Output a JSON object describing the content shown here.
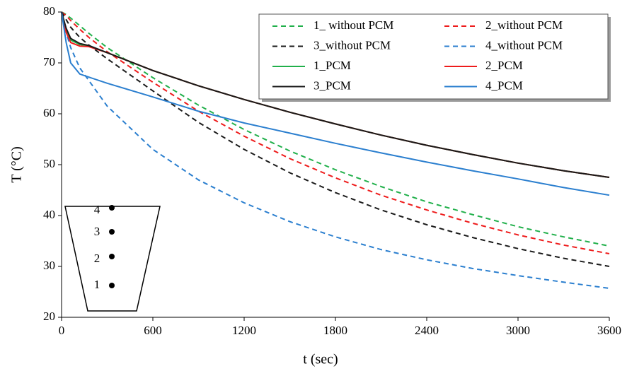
{
  "chart_data": {
    "type": "line",
    "xlabel": "t (sec)",
    "ylabel": "T (°C)",
    "x": [
      0,
      30,
      60,
      120,
      180,
      300,
      600,
      900,
      1200,
      1500,
      1800,
      2100,
      2400,
      2700,
      3000,
      3300,
      3600
    ],
    "series": [
      {
        "name": "1_ without PCM",
        "color": "#21b04b",
        "dash": true,
        "values": [
          80,
          79.5,
          78.8,
          77.3,
          75.8,
          73.0,
          67.1,
          61.7,
          56.9,
          52.7,
          49.0,
          45.7,
          42.7,
          40.2,
          37.8,
          35.8,
          34.0
        ]
      },
      {
        "name": "2_without PCM",
        "color": "#ee1c1c",
        "dash": true,
        "values": [
          80,
          79.3,
          78.3,
          76.6,
          75.0,
          72.2,
          66.2,
          60.5,
          55.6,
          51.2,
          47.4,
          44.0,
          41.1,
          38.5,
          36.2,
          34.2,
          32.5
        ]
      },
      {
        "name": "3_without PCM",
        "color": "#1a1a1a",
        "dash": true,
        "values": [
          80,
          78.5,
          77.0,
          75.0,
          73.5,
          70.8,
          64.5,
          58.3,
          53.0,
          48.4,
          44.5,
          41.1,
          38.2,
          35.7,
          33.5,
          31.6,
          30.0
        ]
      },
      {
        "name": "4_without PCM",
        "color": "#2b7fcf",
        "dash": true,
        "values": [
          80,
          76.0,
          73.0,
          69.0,
          66.5,
          61.5,
          53.0,
          47.0,
          42.5,
          38.8,
          35.8,
          33.3,
          31.3,
          29.6,
          28.2,
          26.9,
          25.7
        ]
      },
      {
        "name": "1_PCM",
        "color": "#21b04b",
        "dash": false,
        "values": [
          80,
          76.5,
          74.5,
          73.6,
          73.3,
          72.0,
          68.5,
          65.5,
          62.8,
          60.3,
          58.0,
          55.8,
          53.8,
          52.0,
          50.3,
          48.8,
          47.5
        ]
      },
      {
        "name": "2_PCM",
        "color": "#ee1c1c",
        "dash": false,
        "values": [
          80,
          76.0,
          74.0,
          73.3,
          73.2,
          72.0,
          68.5,
          65.5,
          62.8,
          60.3,
          58.0,
          55.8,
          53.8,
          52.0,
          50.3,
          48.8,
          47.5
        ]
      },
      {
        "name": "3_PCM",
        "color": "#1a1a1a",
        "dash": false,
        "values": [
          80,
          76.8,
          74.8,
          73.8,
          73.4,
          72.0,
          68.5,
          65.5,
          62.8,
          60.3,
          58.0,
          55.8,
          53.8,
          52.0,
          50.3,
          48.8,
          47.5
        ]
      },
      {
        "name": "4_PCM",
        "color": "#2b7fcf",
        "dash": false,
        "values": [
          80,
          74.0,
          70.0,
          67.8,
          67.2,
          66.0,
          63.3,
          60.5,
          58.2,
          56.2,
          54.2,
          52.3,
          50.5,
          48.8,
          47.2,
          45.5,
          44.0
        ]
      }
    ],
    "xlim": [
      0,
      3600
    ],
    "xticks": [
      0,
      600,
      1200,
      1800,
      2400,
      3000,
      3600
    ],
    "ylim": [
      20,
      80
    ],
    "yticks": [
      20,
      30,
      40,
      50,
      60,
      70,
      80
    ],
    "legend": "top-right",
    "annotations": [
      "4",
      "3",
      "2",
      "1"
    ]
  }
}
